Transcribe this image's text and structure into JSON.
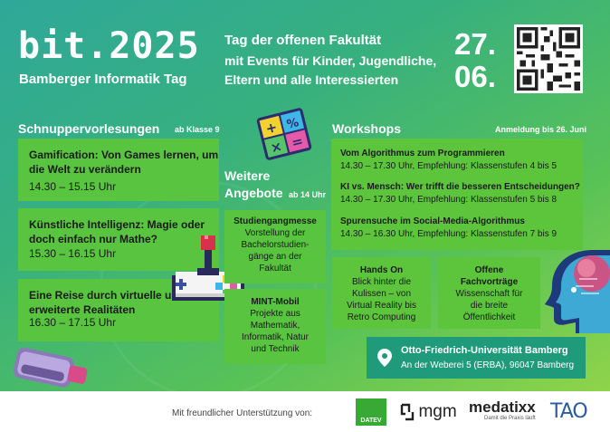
{
  "header": {
    "title": "bit.2025",
    "subtitle": "Bamberger Informatik Tag",
    "intro_lines": [
      "Tag der offenen Fakultät",
      "mit Events für Kinder, Jugendliche,",
      "Eltern und alle Interessierten"
    ],
    "date_day": "27.",
    "date_month": "06."
  },
  "lectures": {
    "heading": "Schnuppervorlesungen",
    "note": "ab Klasse 9",
    "items": [
      {
        "title": "Gamification: Von Games lernen, um die Welt zu verändern",
        "time": "14.30 – 15.15 Uhr"
      },
      {
        "title": "Künstliche Intelligenz: Magie oder doch einfach nur Mathe?",
        "time": "15.30 – 16.15 Uhr"
      },
      {
        "title": "Eine Reise durch virtuelle und erweiterte Realitäten",
        "time": "16.30 – 17.15 Uhr"
      }
    ]
  },
  "further": {
    "heading_line1": "Weitere",
    "heading_line2": "Angebote",
    "note": "ab 14 Uhr",
    "items": [
      {
        "title": "Studiengangmesse",
        "lines": [
          "Vorstellung der",
          "Bachelorstudien-",
          "gänge an der",
          "Fakultät"
        ]
      },
      {
        "title": "MINT-Mobil",
        "lines": [
          "Projekte aus",
          "Mathematik,",
          "Informatik, Natur",
          "und Technik"
        ]
      }
    ]
  },
  "workshops": {
    "heading": "Workshops",
    "note": "Anmeldung bis 26. Juni",
    "items": [
      {
        "title": "Vom Algorithmus zum Programmieren",
        "time": "14.30 – 17.30 Uhr, Empfehlung: Klassenstufen 4 bis 5"
      },
      {
        "title": "KI vs. Mensch: Wer trifft die besseren Entscheidungen?",
        "time": "14.30 – 17.30 Uhr, Empfehlung: Klassenstufen 5 bis 8"
      },
      {
        "title": "Spurensuche im Social-Media-Algorithmus",
        "time": "14.30 – 16.30 Uhr, Empfehlung: Klassenstufen 7 bis 9"
      }
    ]
  },
  "extras": [
    {
      "title": "Hands On",
      "lines": [
        "Blick hinter die",
        "Kulissen – von",
        "Virtual Reality bis",
        "Retro Computing"
      ]
    },
    {
      "title_lines": [
        "Offene",
        "Fachvorträge"
      ],
      "lines": [
        "Wissenschaft für",
        "die breite",
        "Öffentlichkeit"
      ]
    }
  ],
  "location": {
    "name": "Otto-Friedrich-Universität Bamberg",
    "address": "An der Weberei 5 (ERBA), 96047 Bamberg"
  },
  "footer": {
    "support": "Mit freundlicher Unterstützung von:",
    "sponsors": {
      "datev": "DATEV",
      "mgm": "mgm",
      "medatixx": "medatixx",
      "medatixx_tag": "Damit die Praxis läuft",
      "tao": "TAO"
    }
  },
  "icons": {
    "plus": "+",
    "percent": "%",
    "times": "×",
    "equals": "="
  },
  "colors": {
    "card_green": "#5cc53c",
    "location_bg": "#1f9a7a",
    "datev_green": "#38a935"
  }
}
